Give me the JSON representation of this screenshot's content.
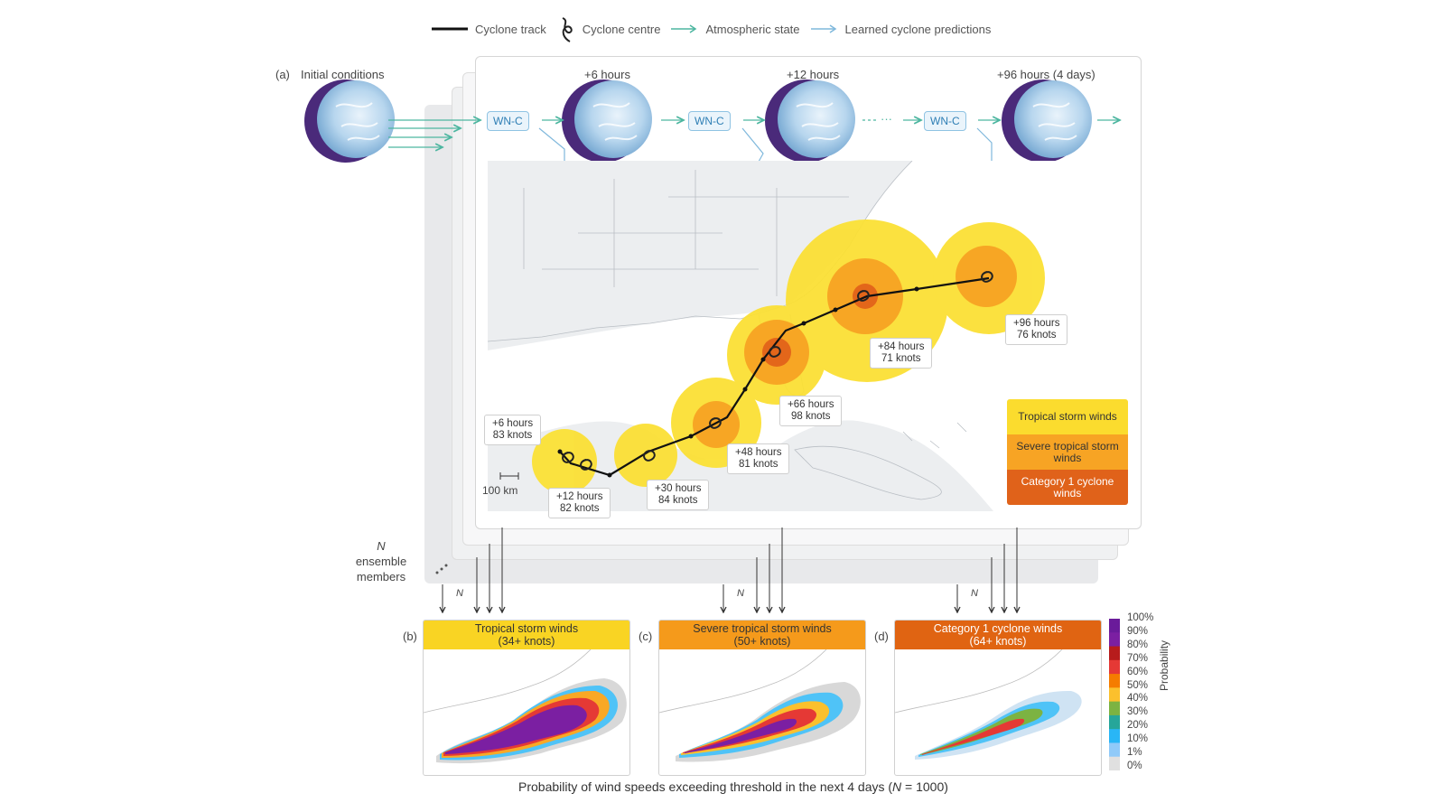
{
  "legend": {
    "track": "Cyclone track",
    "centre": "Cyclone centre",
    "atmos": "Atmospheric state",
    "learned": "Learned cyclone predictions"
  },
  "panel_a": {
    "tag": "(a)",
    "initial": "Initial conditions",
    "steps": [
      "+6 hours",
      "+12 hours",
      "+96 hours (4 days)"
    ],
    "model": "WN-C",
    "ellipsis": "···",
    "scale": "100 km",
    "ensemble_n": "N",
    "ensemble_text1": "ensemble",
    "ensemble_text2": "members",
    "track_labels": [
      {
        "t": "+6 hours",
        "k": "83 knots"
      },
      {
        "t": "+12 hours",
        "k": "82 knots"
      },
      {
        "t": "+30 hours",
        "k": "84 knots"
      },
      {
        "t": "+48 hours",
        "k": "81 knots"
      },
      {
        "t": "+66 hours",
        "k": "98 knots"
      },
      {
        "t": "+84 hours",
        "k": "71 knots"
      },
      {
        "t": "+96 hours",
        "k": "76 knots"
      }
    ],
    "key": [
      "Tropical storm winds",
      "Severe tropical storm winds",
      "Category 1 cyclone winds"
    ]
  },
  "panels": [
    {
      "tag": "(b)",
      "title1": "Tropical storm winds",
      "title2": "(34+ knots)",
      "color": "#f9d423"
    },
    {
      "tag": "(c)",
      "title1": "Severe tropical storm winds",
      "title2": "(50+ knots)",
      "color": "#f59a1b"
    },
    {
      "tag": "(d)",
      "title1": "Category 1 cyclone winds",
      "title2": "(64+ knots)",
      "color": "#e06412"
    }
  ],
  "colorbar": {
    "label": "Probability",
    "ticks": [
      "100%",
      "90%",
      "80%",
      "70%",
      "60%",
      "50%",
      "40%",
      "30%",
      "20%",
      "10%",
      "1%",
      "0%"
    ],
    "colors": [
      "#6a1b9a",
      "#7b1fa2",
      "#b71c1c",
      "#e53935",
      "#f57c00",
      "#fbc02d",
      "#7cb342",
      "#26a69a",
      "#29b6f6",
      "#90caf9",
      "#e0e0e0"
    ]
  },
  "n_small": "N",
  "caption_pre": "Probability of wind speeds exceeding threshold in the next 4 days (",
  "caption_n": "N",
  "caption_post": " = 1000)"
}
